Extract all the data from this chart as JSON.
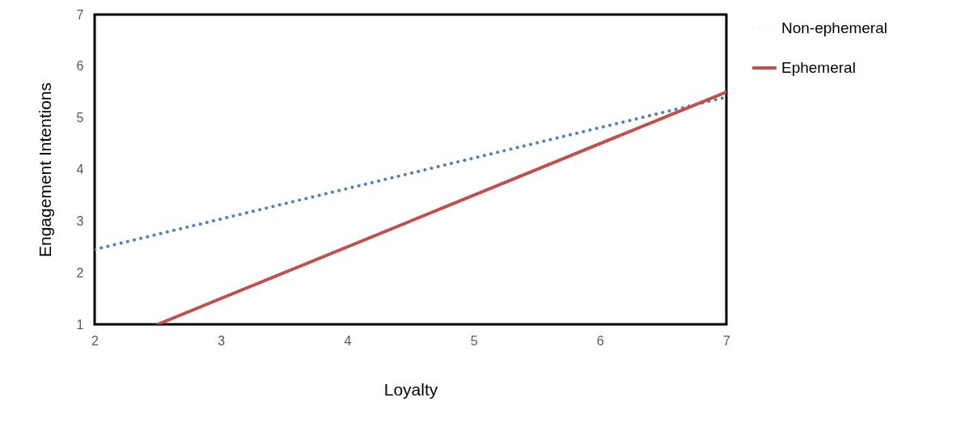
{
  "chart_data": {
    "type": "line",
    "xlabel": "Loyalty",
    "ylabel": "Engagement Intentions",
    "xlim": [
      2,
      7
    ],
    "xticks": [
      2,
      3,
      4,
      5,
      6,
      7
    ],
    "ylim": [
      1,
      7
    ],
    "yticks": [
      1,
      2,
      3,
      4,
      5,
      6,
      7
    ],
    "legend": "top right",
    "grid": false,
    "series": [
      {
        "name": "Non-ephemeral",
        "color": "#4f81bd",
        "line_style": "dotted",
        "x": [
          2,
          7
        ],
        "values": [
          2.45,
          5.4
        ]
      },
      {
        "name": "Ephemeral",
        "color": "#c0504d",
        "line_style": "solid",
        "x": [
          2.5,
          7
        ],
        "values": [
          1,
          5.5
        ]
      }
    ]
  }
}
